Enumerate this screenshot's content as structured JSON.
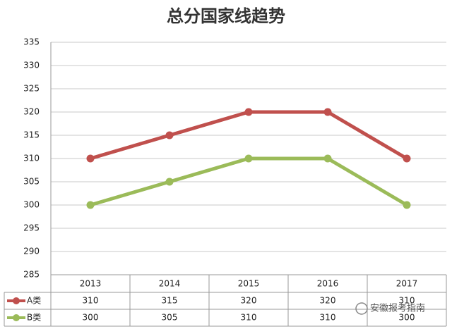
{
  "chart_data": {
    "type": "line",
    "title": "总分国家线趋势",
    "categories": [
      "2013",
      "2014",
      "2015",
      "2016",
      "2017"
    ],
    "series": [
      {
        "name": "A类",
        "color": "#c0504d",
        "values": [
          310,
          315,
          320,
          320,
          310
        ]
      },
      {
        "name": "B类",
        "color": "#9bbb59",
        "values": [
          300,
          305,
          310,
          310,
          300
        ]
      }
    ],
    "ylim": [
      285,
      335
    ],
    "yticks": [
      285,
      290,
      295,
      300,
      305,
      310,
      315,
      320,
      325,
      330,
      335
    ],
    "grid": true
  },
  "watermark": "安徽报考指南"
}
